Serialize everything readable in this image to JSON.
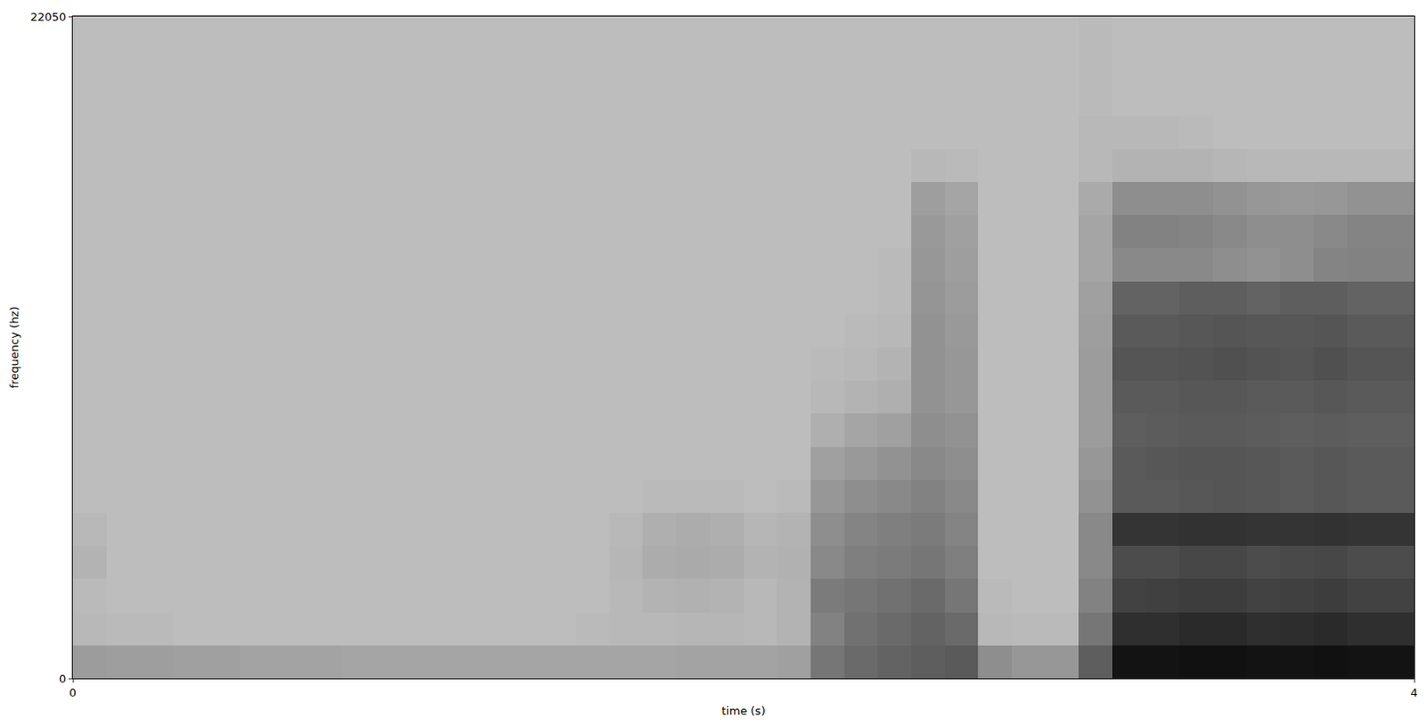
{
  "chart_data": {
    "type": "heatmap",
    "x_label": "time (s)",
    "y_label": "frequency (hz)",
    "xlim": [
      0,
      4
    ],
    "xticks": [
      0,
      4
    ],
    "ylim": [
      0,
      22050
    ],
    "yticks": [
      0,
      22050
    ],
    "zlim": [
      0,
      100
    ],
    "grid": false,
    "x": [
      0.05,
      0.15,
      0.25,
      0.35,
      0.45,
      0.55,
      0.65,
      0.75,
      0.85,
      0.95,
      1.05,
      1.15,
      1.25,
      1.35,
      1.45,
      1.55,
      1.65,
      1.75,
      1.85,
      1.95,
      2.05,
      2.15,
      2.25,
      2.35,
      2.45,
      2.55,
      2.65,
      2.75,
      2.85,
      2.95,
      3.05,
      3.15,
      3.25,
      3.35,
      3.45,
      3.55,
      3.65,
      3.75,
      3.85,
      3.95
    ],
    "y": [
      551.25,
      1653.75,
      2756.25,
      3858.75,
      4961.25,
      6063.75,
      7166.25,
      8268.75,
      9371.25,
      10473.75,
      11576.25,
      12678.75,
      13781.25,
      14883.75,
      15986.25,
      17088.75,
      18191.25,
      19293.75,
      20396.25,
      21498.75
    ],
    "z": [
      [
        34,
        33,
        33,
        32,
        32,
        31,
        31,
        31,
        30,
        30,
        30,
        30,
        30,
        30,
        30,
        30,
        30,
        30,
        31,
        31,
        31,
        32,
        50,
        55,
        58,
        60,
        62,
        40,
        36,
        36,
        60,
        92,
        92,
        93,
        93,
        92,
        92,
        93,
        92,
        92
      ],
      [
        22,
        21,
        21,
        20,
        20,
        20,
        20,
        20,
        20,
        20,
        20,
        20,
        20,
        20,
        20,
        21,
        22,
        22,
        23,
        23,
        22,
        24,
        45,
        52,
        55,
        58,
        55,
        22,
        21,
        21,
        50,
        80,
        80,
        82,
        82,
        80,
        81,
        82,
        80,
        80
      ],
      [
        21,
        20,
        20,
        20,
        20,
        20,
        20,
        20,
        20,
        20,
        20,
        20,
        20,
        20,
        20,
        20,
        22,
        24,
        25,
        24,
        22,
        24,
        48,
        50,
        52,
        55,
        50,
        21,
        20,
        20,
        45,
        72,
        73,
        74,
        74,
        72,
        73,
        74,
        72,
        72
      ],
      [
        24,
        20,
        20,
        20,
        20,
        20,
        20,
        20,
        20,
        20,
        20,
        20,
        20,
        20,
        20,
        20,
        23,
        27,
        28,
        27,
        24,
        25,
        42,
        46,
        48,
        50,
        46,
        20,
        20,
        20,
        42,
        68,
        68,
        70,
        70,
        68,
        69,
        70,
        68,
        68
      ],
      [
        22,
        20,
        20,
        20,
        20,
        20,
        20,
        20,
        20,
        20,
        20,
        20,
        20,
        20,
        20,
        20,
        22,
        26,
        27,
        26,
        23,
        24,
        40,
        44,
        46,
        48,
        44,
        20,
        20,
        20,
        42,
        78,
        78,
        79,
        79,
        78,
        78,
        79,
        78,
        78
      ],
      [
        20,
        20,
        20,
        20,
        20,
        20,
        20,
        20,
        20,
        20,
        20,
        20,
        20,
        20,
        20,
        20,
        20,
        21,
        21,
        21,
        20,
        21,
        36,
        40,
        42,
        45,
        42,
        20,
        20,
        20,
        38,
        62,
        62,
        63,
        64,
        63,
        62,
        63,
        62,
        62
      ],
      [
        20,
        20,
        20,
        20,
        20,
        20,
        20,
        20,
        20,
        20,
        20,
        20,
        20,
        20,
        20,
        20,
        20,
        20,
        20,
        20,
        20,
        20,
        32,
        35,
        38,
        42,
        40,
        20,
        20,
        20,
        36,
        62,
        63,
        64,
        64,
        63,
        62,
        63,
        62,
        62
      ],
      [
        20,
        20,
        20,
        20,
        20,
        20,
        20,
        20,
        20,
        20,
        20,
        20,
        20,
        20,
        20,
        20,
        20,
        20,
        20,
        20,
        20,
        20,
        26,
        30,
        32,
        40,
        38,
        20,
        20,
        20,
        34,
        60,
        61,
        62,
        62,
        61,
        60,
        61,
        60,
        60
      ],
      [
        20,
        20,
        20,
        20,
        20,
        20,
        20,
        20,
        20,
        20,
        20,
        20,
        20,
        20,
        20,
        20,
        20,
        20,
        20,
        20,
        20,
        20,
        22,
        24,
        26,
        38,
        36,
        20,
        20,
        20,
        34,
        62,
        62,
        63,
        63,
        62,
        62,
        63,
        62,
        62
      ],
      [
        20,
        20,
        20,
        20,
        20,
        20,
        20,
        20,
        20,
        20,
        20,
        20,
        20,
        20,
        20,
        20,
        20,
        20,
        20,
        20,
        20,
        20,
        21,
        22,
        24,
        38,
        36,
        20,
        20,
        20,
        34,
        64,
        64,
        65,
        66,
        65,
        64,
        66,
        64,
        64
      ],
      [
        20,
        20,
        20,
        20,
        20,
        20,
        20,
        20,
        20,
        20,
        20,
        20,
        20,
        20,
        20,
        20,
        20,
        20,
        20,
        20,
        20,
        20,
        20,
        21,
        22,
        38,
        35,
        20,
        20,
        20,
        33,
        62,
        62,
        63,
        64,
        63,
        63,
        64,
        62,
        62
      ],
      [
        20,
        20,
        20,
        20,
        20,
        20,
        20,
        20,
        20,
        20,
        20,
        20,
        20,
        20,
        20,
        20,
        20,
        20,
        20,
        20,
        20,
        20,
        20,
        20,
        21,
        37,
        34,
        20,
        20,
        20,
        32,
        58,
        58,
        60,
        60,
        58,
        60,
        60,
        58,
        58
      ],
      [
        20,
        20,
        20,
        20,
        20,
        20,
        20,
        20,
        20,
        20,
        20,
        20,
        20,
        20,
        20,
        20,
        20,
        20,
        20,
        20,
        20,
        20,
        20,
        20,
        21,
        36,
        33,
        20,
        20,
        20,
        30,
        42,
        42,
        42,
        40,
        38,
        40,
        44,
        45,
        45
      ],
      [
        20,
        20,
        20,
        20,
        20,
        20,
        20,
        20,
        20,
        20,
        20,
        20,
        20,
        20,
        20,
        20,
        20,
        20,
        20,
        20,
        20,
        20,
        20,
        20,
        20,
        35,
        32,
        20,
        20,
        20,
        30,
        45,
        45,
        44,
        42,
        40,
        40,
        42,
        44,
        44
      ],
      [
        20,
        20,
        20,
        20,
        20,
        20,
        20,
        20,
        20,
        20,
        20,
        20,
        20,
        20,
        20,
        20,
        20,
        20,
        20,
        20,
        20,
        20,
        20,
        20,
        20,
        33,
        30,
        20,
        20,
        20,
        28,
        40,
        40,
        40,
        38,
        36,
        35,
        36,
        38,
        38
      ],
      [
        20,
        20,
        20,
        20,
        20,
        20,
        20,
        20,
        20,
        20,
        20,
        20,
        20,
        20,
        20,
        20,
        20,
        20,
        20,
        20,
        20,
        20,
        20,
        20,
        20,
        22,
        21,
        20,
        20,
        20,
        22,
        24,
        24,
        24,
        23,
        22,
        22,
        22,
        22,
        22
      ],
      [
        20,
        20,
        20,
        20,
        20,
        20,
        20,
        20,
        20,
        20,
        20,
        20,
        20,
        20,
        20,
        20,
        20,
        20,
        20,
        20,
        20,
        20,
        20,
        20,
        20,
        20,
        20,
        20,
        20,
        20,
        22,
        22,
        22,
        21,
        20,
        20,
        20,
        20,
        20,
        20
      ],
      [
        20,
        20,
        20,
        20,
        20,
        20,
        20,
        20,
        20,
        20,
        20,
        20,
        20,
        20,
        20,
        20,
        20,
        20,
        20,
        20,
        20,
        20,
        20,
        20,
        20,
        20,
        20,
        20,
        20,
        20,
        21,
        20,
        20,
        20,
        20,
        20,
        20,
        20,
        20,
        20
      ],
      [
        20,
        20,
        20,
        20,
        20,
        20,
        20,
        20,
        20,
        20,
        20,
        20,
        20,
        20,
        20,
        20,
        20,
        20,
        20,
        20,
        20,
        20,
        20,
        20,
        20,
        20,
        20,
        20,
        20,
        20,
        21,
        20,
        20,
        20,
        20,
        20,
        20,
        20,
        20,
        20
      ],
      [
        20,
        20,
        20,
        20,
        20,
        20,
        20,
        20,
        20,
        20,
        20,
        20,
        20,
        20,
        20,
        20,
        20,
        20,
        20,
        20,
        20,
        20,
        20,
        20,
        20,
        20,
        20,
        20,
        20,
        20,
        21,
        20,
        20,
        20,
        20,
        20,
        20,
        20,
        20,
        20
      ]
    ]
  }
}
